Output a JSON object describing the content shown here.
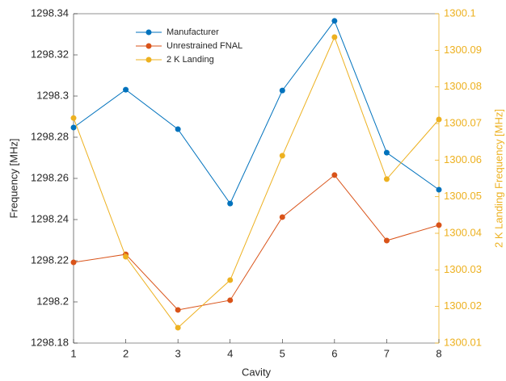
{
  "chart_data": {
    "type": "line",
    "x_label": "Cavity",
    "y_label": "Frequency [MHz]",
    "y2_label": "2 K Landing Frequency [MHz]",
    "x": [
      1,
      2,
      3,
      4,
      5,
      6,
      7,
      8
    ],
    "xlim": [
      1,
      8
    ],
    "xticks": [
      1,
      2,
      3,
      4,
      5,
      6,
      7,
      8
    ],
    "ylim": [
      1298.18,
      1298.34
    ],
    "yticks": [
      1298.18,
      1298.2,
      1298.22,
      1298.24,
      1298.26,
      1298.28,
      1298.3,
      1298.32,
      1298.34
    ],
    "y2lim": [
      1300.01,
      1300.1
    ],
    "y2ticks": [
      1300.01,
      1300.02,
      1300.03,
      1300.04,
      1300.05,
      1300.06,
      1300.07,
      1300.08,
      1300.09,
      1300.1
    ],
    "y2_color": "#EDB120",
    "legend": "upper-left",
    "series": [
      {
        "name": "Manufacturer",
        "color": "#0072BD",
        "values": [
          1298.2847,
          1298.3031,
          1298.2839,
          1298.2478,
          1298.3027,
          1298.3365,
          1298.2725,
          1298.2545
        ]
      },
      {
        "name": "Unrestrained FNAL",
        "color": "#D95319",
        "values": [
          1298.2192,
          1298.2231,
          1298.1961,
          1298.2008,
          1298.2412,
          1298.2616,
          1298.2298,
          1298.2373
        ]
      },
      {
        "name": "2 K Landing",
        "color": "#EDB120",
        "axis": "y2",
        "values": [
          1300.0715,
          1300.0336,
          1300.0142,
          1300.0272,
          1300.0612,
          1300.0936,
          1300.0548,
          1300.0711
        ]
      }
    ]
  }
}
